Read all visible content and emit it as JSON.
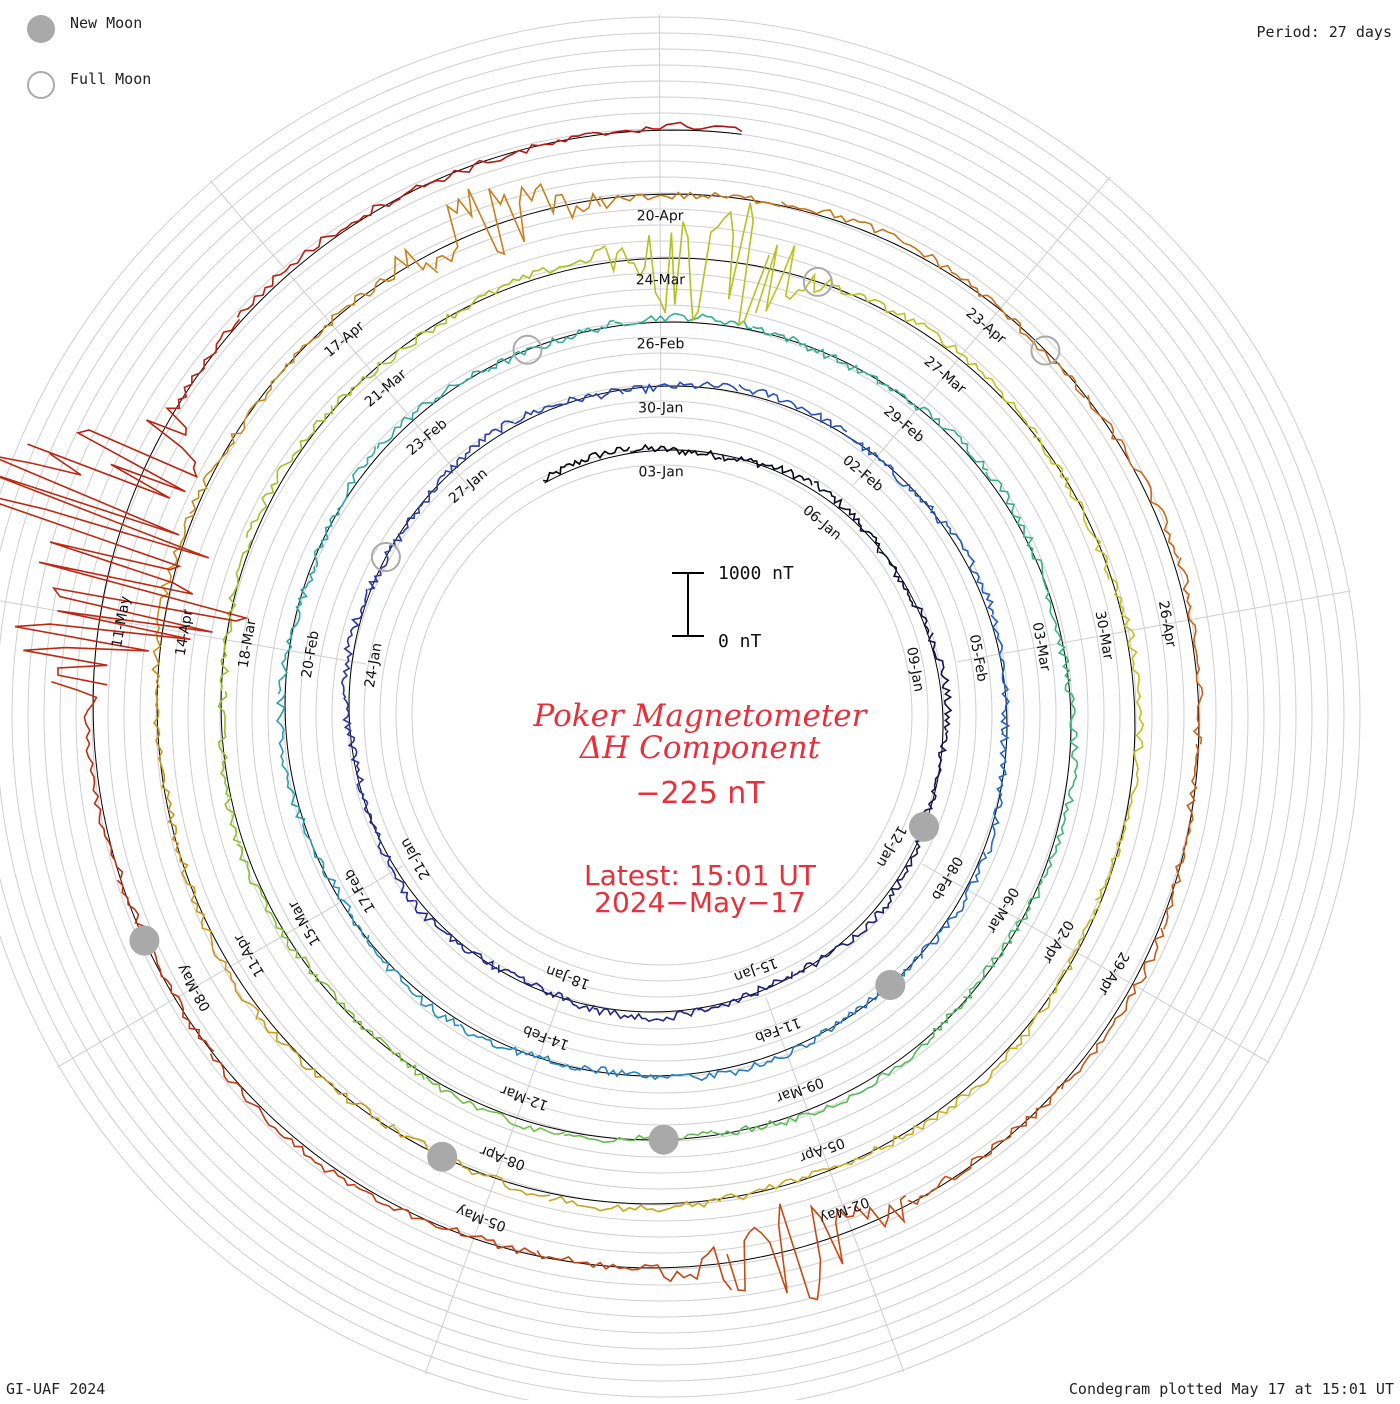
{
  "legend": {
    "new_moon_label": "New Moon",
    "full_moon_label": "Full Moon",
    "new_moon_color": "#a9a9a9",
    "full_moon_color": "#aaaaaa"
  },
  "period_label": "Period: 27 days",
  "footer": {
    "left": "GI-UAF 2024",
    "right": "Condegram plotted May 17 at 15:01 UT"
  },
  "title": {
    "line1": "Poker Magnetometer",
    "line2": "ΔH Component",
    "value": "−225 nT",
    "latest": "Latest: 15:01 UT",
    "date": "2024−May−17",
    "color": "#e8303a"
  },
  "scale_bar": {
    "top_label": "1000 nT",
    "bottom_label": "0 nT",
    "range_nT": [
      0,
      1000
    ]
  },
  "chart_data": {
    "type": "line",
    "subtype": "condegram-spiral",
    "title": "Poker Magnetometer ΔH Component",
    "period_days": 27,
    "start_date": "2024-01-01",
    "end_date": "2024-05-17",
    "latest_value_nT": -225,
    "series_colors": [
      "#000000",
      "#1b1f7a",
      "#2a3bb0",
      "#1f6fd0",
      "#2aa8b0",
      "#39b870",
      "#8ec42a",
      "#c8c21a",
      "#c89a1a",
      "#c8701a",
      "#c83a10",
      "#b40f10"
    ],
    "date_labels": [
      "03-Jan",
      "06-Jan",
      "09-Jan",
      "12-Jan",
      "15-Jan",
      "18-Jan",
      "21-Jan",
      "24-Jan",
      "27-Jan",
      "30-Jan",
      "02-Feb",
      "05-Feb",
      "08-Feb",
      "11-Feb",
      "14-Feb",
      "17-Feb",
      "20-Feb",
      "23-Feb",
      "26-Feb",
      "29-Feb",
      "03-Mar",
      "06-Mar",
      "09-Mar",
      "12-Mar",
      "15-Mar",
      "18-Mar",
      "21-Mar",
      "24-Mar",
      "27-Mar",
      "30-Mar",
      "02-Apr",
      "05-Apr",
      "08-Apr",
      "11-Apr",
      "14-Apr",
      "17-Apr",
      "20-Apr",
      "23-Apr",
      "26-Apr",
      "29-Apr",
      "02-May",
      "05-May",
      "08-May",
      "11-May"
    ],
    "events": [
      {
        "type": "Full Moon",
        "date": "2024-01-25"
      },
      {
        "type": "New Moon",
        "date": "2024-02-09"
      },
      {
        "type": "Full Moon",
        "date": "2024-02-24"
      },
      {
        "type": "New Moon",
        "date": "2024-03-10"
      },
      {
        "type": "Full Moon",
        "date": "2024-03-25"
      },
      {
        "type": "New Moon",
        "date": "2024-04-08"
      },
      {
        "type": "Full Moon",
        "date": "2024-04-23"
      },
      {
        "type": "New Moon",
        "date": "2024-05-08"
      },
      {
        "type": "New Moon",
        "date": "2024-01-11"
      }
    ],
    "disturbances": [
      {
        "date": "2024-03-24",
        "amplitude_nT": -600
      },
      {
        "date": "2024-04-18",
        "amplitude_nT": -300
      },
      {
        "date": "2024-05-02",
        "amplitude_nT": -400
      },
      {
        "date": "2024-05-11",
        "amplitude_nT": 1500
      }
    ]
  }
}
